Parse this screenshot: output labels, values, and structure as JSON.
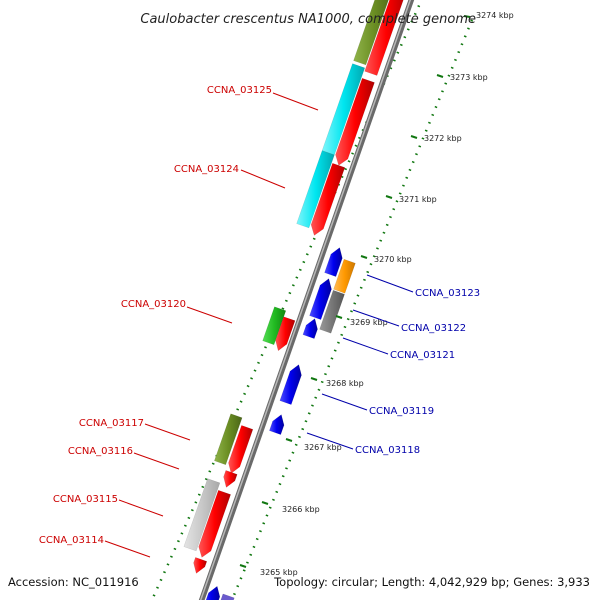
{
  "title": "Caulobacter crescentus NA1000, complete genome",
  "footer": {
    "accession": "Accession: NC_011916",
    "summary": "Topology: circular; Length: 4,042,929 bp; Genes: 3,933"
  },
  "scale_ticks": [
    "3274 kbp",
    "3273 kbp",
    "3272 kbp",
    "3271 kbp",
    "3270 kbp",
    "3269 kbp",
    "3268 kbp",
    "3267 kbp",
    "3266 kbp",
    "3265 kbp"
  ],
  "colors": {
    "forward_label": "#cc0000",
    "reverse_label": "#0000aa",
    "cds": "#ff0000",
    "rev_gene": "#0000ee",
    "cyan": "#00e6f0",
    "olive": "#6b8e23",
    "green": "#22bb22",
    "orange": "#ff9900",
    "gray": "#777777",
    "lightgray": "#c8c8c8",
    "tick": "#117711",
    "backbone": "#8a8a8a"
  },
  "forward_labels": [
    "CCNA_03125",
    "CCNA_03124",
    "CCNA_03120",
    "CCNA_03117",
    "CCNA_03116",
    "CCNA_03115",
    "CCNA_03114"
  ],
  "reverse_labels": [
    "CCNA_03123",
    "CCNA_03122",
    "CCNA_03121",
    "CCNA_03119",
    "CCNA_03118"
  ]
}
